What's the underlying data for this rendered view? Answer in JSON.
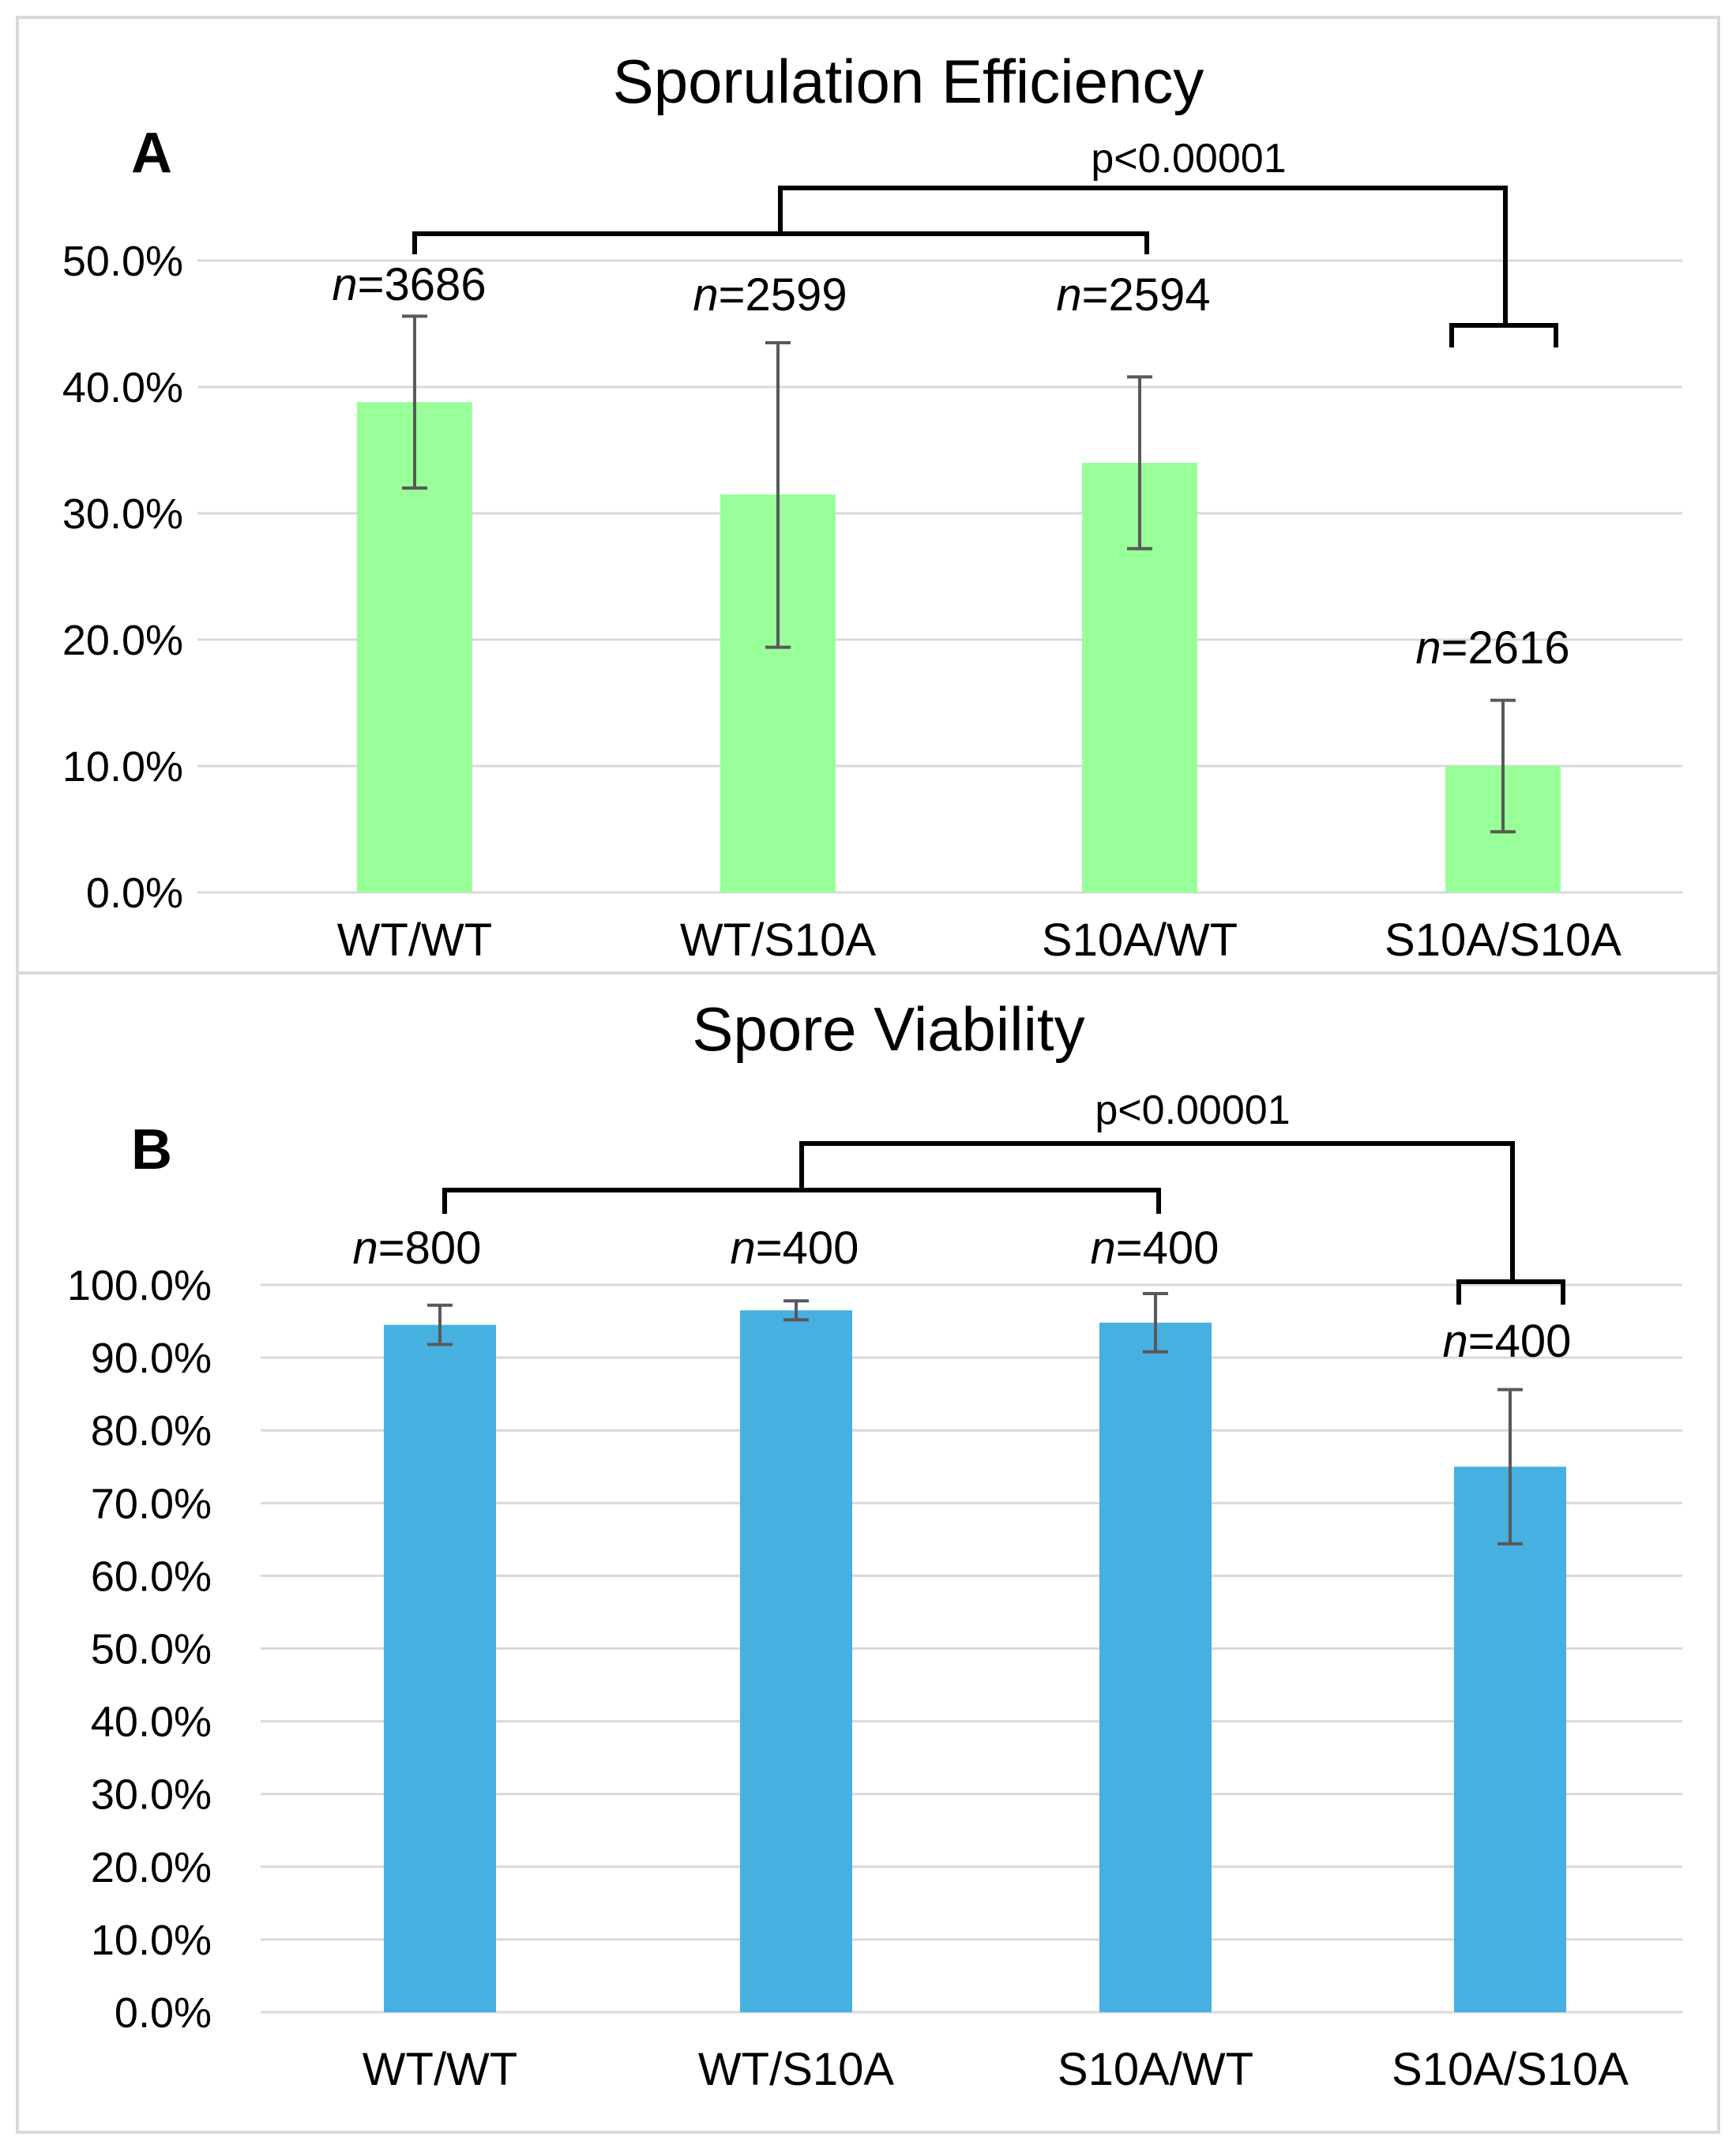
{
  "chart_data": [
    {
      "panel": "A",
      "type": "bar",
      "title": "Sporulation Efficiency",
      "categories": [
        "WT/WT",
        "WT/S10A",
        "S10A/WT",
        "S10A/S10A"
      ],
      "values": [
        38.8,
        31.5,
        34.0,
        10.0
      ],
      "error_low": [
        32.0,
        19.4,
        27.2,
        4.8
      ],
      "error_high": [
        45.6,
        43.5,
        40.8,
        15.2
      ],
      "n_labels": [
        "3686",
        "2599",
        "2594",
        "2616"
      ],
      "n_prefix": "n",
      "ylim": [
        0,
        50
      ],
      "yticks": [
        "0.0%",
        "10.0%",
        "20.0%",
        "30.0%",
        "40.0%",
        "50.0%"
      ],
      "ytick_values": [
        0,
        10,
        20,
        30,
        40,
        50
      ],
      "bar_color": "#99ff99",
      "significance": "p<0.00001"
    },
    {
      "panel": "B",
      "type": "bar",
      "title": "Spore Viability",
      "categories": [
        "WT/WT",
        "WT/S10A",
        "S10A/WT",
        "S10A/S10A"
      ],
      "values": [
        94.5,
        96.5,
        94.8,
        75.0
      ],
      "error_low": [
        91.8,
        95.2,
        90.8,
        64.4
      ],
      "error_high": [
        97.2,
        97.8,
        98.8,
        85.6
      ],
      "n_labels": [
        "800",
        "400",
        "400",
        "400"
      ],
      "n_prefix": "n",
      "ylim": [
        0,
        100
      ],
      "yticks": [
        "0.0%",
        "10.0%",
        "20.0%",
        "30.0%",
        "40.0%",
        "50.0%",
        "60.0%",
        "70.0%",
        "80.0%",
        "90.0%",
        "100.0%"
      ],
      "ytick_values": [
        0,
        10,
        20,
        30,
        40,
        50,
        60,
        70,
        80,
        90,
        100
      ],
      "bar_color": "#46b0e1",
      "significance": "p<0.00001"
    }
  ]
}
